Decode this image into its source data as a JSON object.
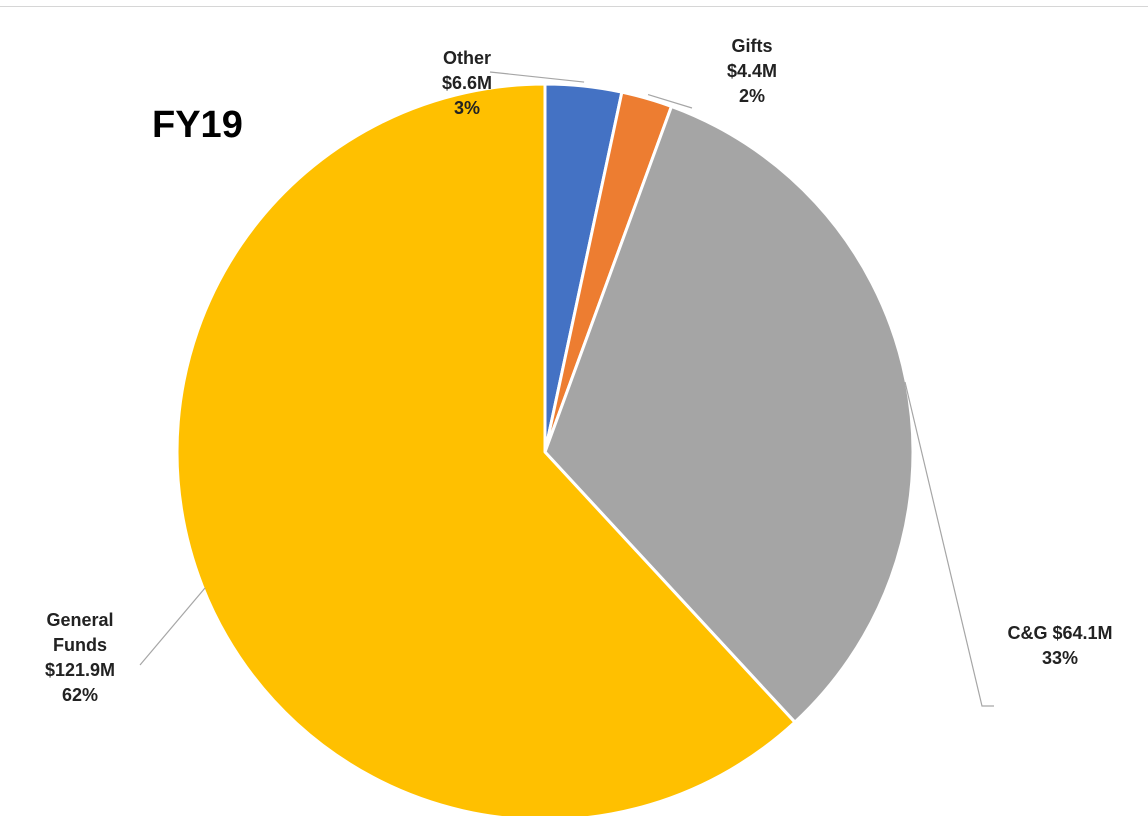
{
  "chart_data": {
    "type": "pie",
    "title": "FY19",
    "start_angle_deg": 0,
    "direction": "clockwise",
    "slices": [
      {
        "name": "Other",
        "value": 6.6,
        "value_label": "$6.6M",
        "percent_label": "3%",
        "color": "#4472C4"
      },
      {
        "name": "Gifts",
        "value": 4.4,
        "value_label": "$4.4M",
        "percent_label": "2%",
        "color": "#ED7D31"
      },
      {
        "name": "C&G",
        "value": 64.1,
        "value_label": "$64.1M",
        "percent_label": "33%",
        "color": "#A5A5A5"
      },
      {
        "name": "General Funds",
        "value": 121.9,
        "value_label": "$121.9M",
        "percent_label": "62%",
        "color": "#FFC000"
      }
    ],
    "legend": "none"
  }
}
